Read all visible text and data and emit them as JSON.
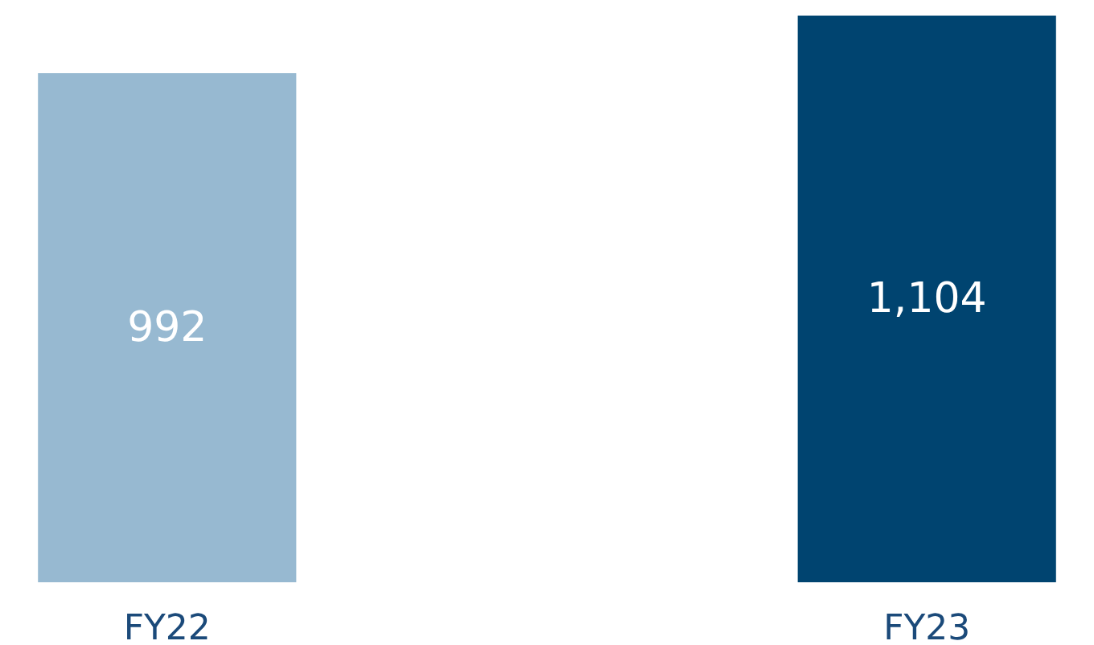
{
  "chart_data": {
    "type": "bar",
    "categories": [
      "FY22",
      "FY23"
    ],
    "values": [
      992,
      1104
    ],
    "colors": [
      "#97b9d1",
      "#004470"
    ],
    "value_labels": [
      "992",
      "1,104"
    ]
  }
}
